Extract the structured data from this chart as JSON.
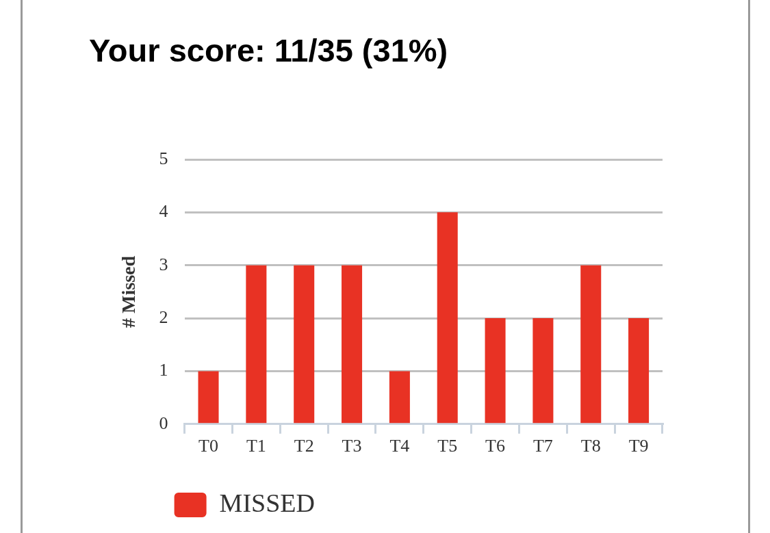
{
  "chart_data": {
    "type": "bar",
    "title": "Your score: 11/35 (31%)",
    "ylabel": "# Missed",
    "categories": [
      "T0",
      "T1",
      "T2",
      "T3",
      "T4",
      "T5",
      "T6",
      "T7",
      "T8",
      "T9"
    ],
    "series": [
      {
        "name": "MISSED",
        "color": "#e83224",
        "values": [
          1,
          3,
          3,
          3,
          1,
          4,
          2,
          2,
          3,
          2
        ]
      }
    ],
    "ylim": [
      0,
      5
    ],
    "yticks": [
      0,
      1,
      2,
      3,
      4,
      5
    ],
    "grid": "y",
    "legend": "bottom left"
  }
}
